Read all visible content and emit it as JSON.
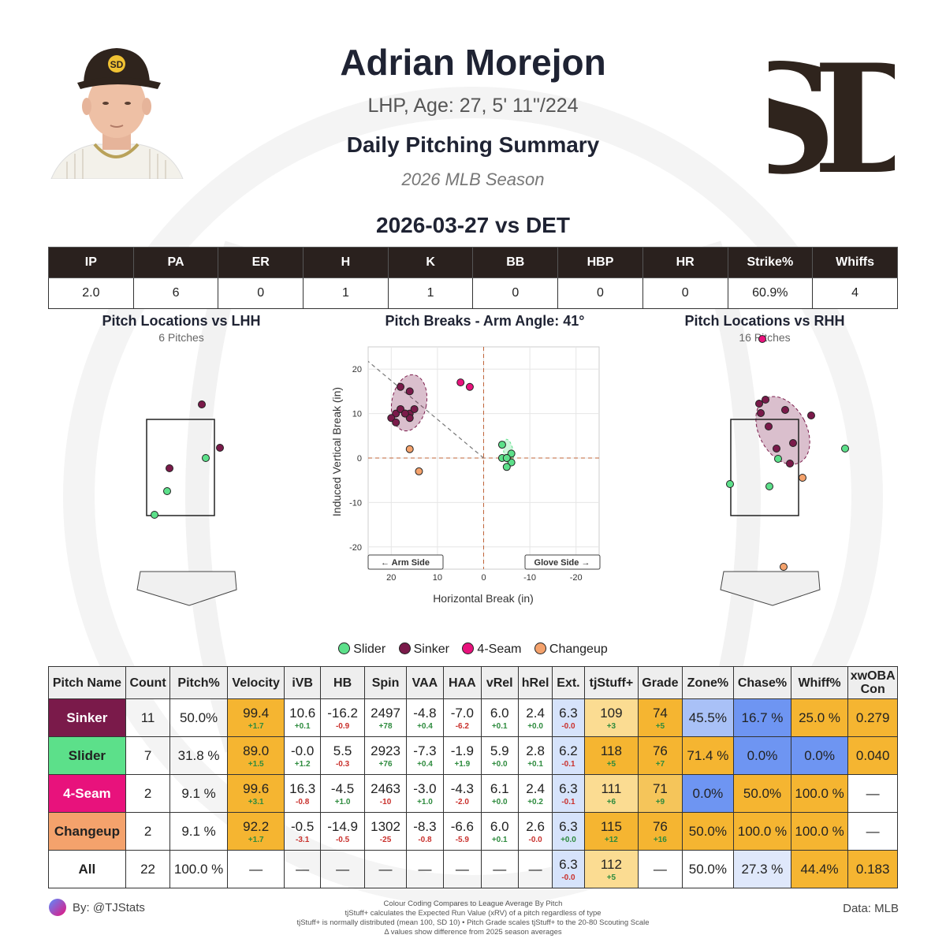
{
  "header": {
    "player_name": "Adrian Morejon",
    "player_info": "LHP, Age: 27, 5' 11\"/224",
    "summary_title": "Daily Pitching Summary",
    "season": "2026 MLB Season",
    "game_title": "2026-03-27 vs DET",
    "team_logo_text": "SD"
  },
  "colors": {
    "slider": "#5ce08a",
    "sinker": "#7a1a4a",
    "four_seam": "#e8127c",
    "changeup": "#f4a26c",
    "header_dark": "#2a211e",
    "team_brown": "#2f241d"
  },
  "stats": {
    "headers": [
      "IP",
      "PA",
      "ER",
      "H",
      "K",
      "BB",
      "HBP",
      "HR",
      "Strike%",
      "Whiffs"
    ],
    "values": [
      "2.0",
      "6",
      "0",
      "1",
      "1",
      "0",
      "0",
      "0",
      "60.9%",
      "4"
    ]
  },
  "panels": {
    "lhh_title": "Pitch Locations vs LHH",
    "lhh_sub": "6 Pitches",
    "break_title": "Pitch Breaks - Arm Angle: 41°",
    "rhh_title": "Pitch Locations vs RHH",
    "rhh_sub": "16 Pitches"
  },
  "chart_data": {
    "type": "scatter",
    "title": "Pitch Breaks - Arm Angle: 41°",
    "xlabel": "Horizontal Break (in)",
    "ylabel": "Induced Vertical Break (in)",
    "xlim": [
      25,
      -25
    ],
    "ylim": [
      -25,
      25
    ],
    "xticks": [
      20,
      10,
      0,
      -10,
      -20
    ],
    "yticks": [
      20,
      10,
      0,
      -10,
      -20
    ],
    "arm_angle": 41,
    "arm_side_label": "← Arm Side",
    "glove_side_label": "Glove Side →",
    "series": [
      {
        "name": "Sinker",
        "points": [
          [
            19,
            10
          ],
          [
            18,
            11
          ],
          [
            20,
            9
          ],
          [
            17,
            10
          ],
          [
            16,
            10
          ],
          [
            15,
            11
          ],
          [
            16,
            9
          ],
          [
            19,
            8
          ],
          [
            16,
            15
          ],
          [
            18,
            16
          ],
          [
            17,
            10
          ]
        ]
      },
      {
        "name": "Slider",
        "points": [
          [
            -4,
            3
          ],
          [
            -5,
            0
          ],
          [
            -6,
            1
          ],
          [
            -6,
            -1
          ],
          [
            -5,
            -2
          ],
          [
            -4,
            0
          ],
          [
            -5,
            0
          ]
        ]
      },
      {
        "name": "4-Seam",
        "points": [
          [
            5,
            17
          ],
          [
            3,
            16
          ]
        ]
      },
      {
        "name": "Changeup",
        "points": [
          [
            16,
            2
          ],
          [
            14,
            -3
          ]
        ]
      }
    ]
  },
  "legend": [
    "Slider",
    "Sinker",
    "4-Seam",
    "Changeup"
  ],
  "pitch_table": {
    "headers": [
      "Pitch Name",
      "Count",
      "Pitch%",
      "Velocity",
      "iVB",
      "HB",
      "Spin",
      "VAA",
      "HAA",
      "vRel",
      "hRel",
      "Ext.",
      "tjStuff+",
      "Grade",
      "Zone%",
      "Chase%",
      "Whiff%",
      "xwOBA Con"
    ],
    "rows": [
      {
        "name": "Sinker",
        "count": "11",
        "pct": "50.0%",
        "velo": "99.4",
        "velo_d": "+1.7",
        "ivb": "10.6",
        "ivb_d": "+0.1",
        "hb": "-16.2",
        "hb_d": "-0.9",
        "spin": "2497",
        "spin_d": "+78",
        "vaa": "-4.8",
        "vaa_d": "+0.4",
        "haa": "-7.0",
        "haa_d": "-6.2",
        "vrel": "6.0",
        "vrel_d": "+0.1",
        "hrel": "2.4",
        "hrel_d": "+0.0",
        "ext": "6.3",
        "ext_d": "-0.0",
        "stuff": "109",
        "stuff_d": "+3",
        "grade": "74",
        "grade_d": "+5",
        "zone": "45.5%",
        "chase": "16.7 %",
        "whiff": "25.0 %",
        "xwoba": "0.279"
      },
      {
        "name": "Slider",
        "count": "7",
        "pct": "31.8 %",
        "velo": "89.0",
        "velo_d": "+1.5",
        "ivb": "-0.0",
        "ivb_d": "+1.2",
        "hb": "5.5",
        "hb_d": "-0.3",
        "spin": "2923",
        "spin_d": "+76",
        "vaa": "-7.3",
        "vaa_d": "+0.4",
        "haa": "-1.9",
        "haa_d": "+1.9",
        "vrel": "5.9",
        "vrel_d": "+0.0",
        "hrel": "2.8",
        "hrel_d": "+0.1",
        "ext": "6.2",
        "ext_d": "-0.1",
        "stuff": "118",
        "stuff_d": "+5",
        "grade": "76",
        "grade_d": "+7",
        "zone": "71.4 %",
        "chase": "0.0%",
        "whiff": "0.0%",
        "xwoba": "0.040"
      },
      {
        "name": "4-Seam",
        "count": "2",
        "pct": "9.1 %",
        "velo": "99.6",
        "velo_d": "+3.1",
        "ivb": "16.3",
        "ivb_d": "-0.8",
        "hb": "-4.5",
        "hb_d": "+1.0",
        "spin": "2463",
        "spin_d": "-10",
        "vaa": "-3.0",
        "vaa_d": "+1.0",
        "haa": "-4.3",
        "haa_d": "-2.0",
        "vrel": "6.1",
        "vrel_d": "+0.0",
        "hrel": "2.4",
        "hrel_d": "+0.2",
        "ext": "6.3",
        "ext_d": "-0.1",
        "stuff": "111",
        "stuff_d": "+6",
        "grade": "71",
        "grade_d": "+9",
        "zone": "0.0%",
        "chase": "50.0%",
        "whiff": "100.0 %",
        "xwoba": "—"
      },
      {
        "name": "Changeup",
        "count": "2",
        "pct": "9.1 %",
        "velo": "92.2",
        "velo_d": "+1.7",
        "ivb": "-0.5",
        "ivb_d": "-3.1",
        "hb": "-14.9",
        "hb_d": "-0.5",
        "spin": "1302",
        "spin_d": "-25",
        "vaa": "-8.3",
        "vaa_d": "-0.8",
        "haa": "-6.6",
        "haa_d": "-5.9",
        "vrel": "6.0",
        "vrel_d": "+0.1",
        "hrel": "2.6",
        "hrel_d": "-0.0",
        "ext": "6.3",
        "ext_d": "+0.0",
        "stuff": "115",
        "stuff_d": "+12",
        "grade": "76",
        "grade_d": "+16",
        "zone": "50.0%",
        "chase": "100.0 %",
        "whiff": "100.0 %",
        "xwoba": "—"
      },
      {
        "name": "All",
        "count": "22",
        "pct": "100.0 %",
        "velo": "—",
        "ivb": "—",
        "hb": "—",
        "spin": "—",
        "vaa": "—",
        "haa": "—",
        "vrel": "—",
        "hrel": "—",
        "ext": "6.3",
        "ext_d": "-0.0",
        "stuff": "112",
        "stuff_d": "+5",
        "grade": "—",
        "zone": "50.0%",
        "chase": "27.3 %",
        "whiff": "44.4%",
        "xwoba": "0.183"
      }
    ]
  },
  "footer": {
    "by": "By: @TJStats",
    "note1": "Colour Coding Compares to League Average By Pitch",
    "note2": "tjStuff+ calculates the Expected Run Value (xRV) of a pitch regardless of type",
    "note3": "tjStuff+ is normally distributed (mean 100, SD 10) • Pitch Grade scales tjStuff+ to the 20-80 Scouting Scale",
    "note4": "Δ values show difference from 2025 season averages",
    "source": "Data: MLB"
  }
}
